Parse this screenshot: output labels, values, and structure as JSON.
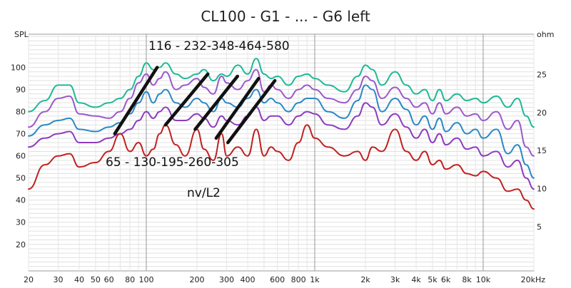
{
  "chart_data": {
    "type": "line",
    "title": "CL100 - G1 - ... - G6 left",
    "xscale": "log",
    "xlim": [
      20,
      20000
    ],
    "ylabel_left": "SPL",
    "ylabel_right": "ohm",
    "ylim": [
      8,
      115
    ],
    "x_ticks": [
      {
        "value": 20,
        "label": "20"
      },
      {
        "value": 30,
        "label": "30"
      },
      {
        "value": 40,
        "label": "40"
      },
      {
        "value": 50,
        "label": "50"
      },
      {
        "value": 60,
        "label": "60"
      },
      {
        "value": 80,
        "label": "80"
      },
      {
        "value": 100,
        "label": "100"
      },
      {
        "value": 200,
        "label": "200"
      },
      {
        "value": 300,
        "label": "300"
      },
      {
        "value": 400,
        "label": "400"
      },
      {
        "value": 600,
        "label": "600"
      },
      {
        "value": 800,
        "label": "800"
      },
      {
        "value": 1000,
        "label": "1k"
      },
      {
        "value": 2000,
        "label": "2k"
      },
      {
        "value": 3000,
        "label": "3k"
      },
      {
        "value": 4000,
        "label": "4k"
      },
      {
        "value": 5000,
        "label": "5k"
      },
      {
        "value": 6000,
        "label": "6k"
      },
      {
        "value": 8000,
        "label": "8k"
      },
      {
        "value": 10000,
        "label": "10k"
      },
      {
        "value": 20000,
        "label": "20kHz"
      }
    ],
    "y_ticks_left": [
      20,
      30,
      40,
      50,
      60,
      70,
      80,
      90,
      100
    ],
    "y_ticks_right": [
      {
        "value": 28,
        "label": "5"
      },
      {
        "value": 45.2,
        "label": "10"
      },
      {
        "value": 62.4,
        "label": "15"
      },
      {
        "value": 79.6,
        "label": "20"
      },
      {
        "value": 96.8,
        "label": "25"
      }
    ],
    "grid": true,
    "series": [
      {
        "color": "#1fb896",
        "x": [
          20,
          25,
          30,
          35,
          40,
          50,
          60,
          70,
          80,
          90,
          100,
          110,
          120,
          130,
          150,
          170,
          200,
          220,
          250,
          280,
          300,
          350,
          400,
          450,
          500,
          550,
          600,
          700,
          800,
          900,
          1000,
          1200,
          1500,
          1800,
          2000,
          2200,
          2500,
          3000,
          3500,
          4000,
          4500,
          5000,
          5500,
          6000,
          7000,
          8000,
          9000,
          10000,
          12000,
          14000,
          16000,
          18000,
          20000
        ],
        "y": [
          80,
          85,
          92,
          92,
          84,
          82,
          84,
          86,
          90,
          96,
          102,
          99,
          100,
          102,
          97,
          95,
          97,
          99,
          94,
          97,
          96,
          101,
          97,
          104,
          97,
          95,
          96,
          92,
          96,
          97,
          95,
          92,
          89,
          96,
          101,
          99,
          92,
          98,
          92,
          88,
          90,
          85,
          90,
          85,
          88,
          85,
          86,
          84,
          87,
          82,
          86,
          78,
          73
        ]
      },
      {
        "color": "#9b59c9",
        "x": [
          20,
          25,
          30,
          35,
          40,
          50,
          60,
          70,
          80,
          90,
          100,
          110,
          120,
          130,
          150,
          170,
          200,
          220,
          250,
          280,
          300,
          350,
          400,
          450,
          500,
          550,
          600,
          700,
          800,
          900,
          1000,
          1200,
          1500,
          1800,
          2000,
          2200,
          2500,
          3000,
          3500,
          4000,
          4500,
          5000,
          5500,
          6000,
          7000,
          8000,
          9000,
          10000,
          12000,
          14000,
          16000,
          18000,
          20000
        ],
        "y": [
          73,
          80,
          86,
          87,
          79,
          78,
          77,
          80,
          86,
          93,
          97,
          92,
          95,
          98,
          90,
          92,
          95,
          91,
          88,
          96,
          93,
          90,
          94,
          99,
          89,
          92,
          90,
          86,
          90,
          92,
          90,
          86,
          84,
          90,
          96,
          94,
          86,
          91,
          86,
          82,
          84,
          79,
          84,
          79,
          82,
          78,
          79,
          76,
          80,
          72,
          76,
          64,
          60
        ]
      },
      {
        "color": "#2b88c4",
        "x": [
          20,
          25,
          30,
          35,
          40,
          50,
          60,
          70,
          80,
          90,
          100,
          110,
          120,
          130,
          150,
          170,
          200,
          220,
          250,
          280,
          300,
          350,
          400,
          450,
          500,
          550,
          600,
          700,
          800,
          900,
          1000,
          1200,
          1500,
          1800,
          2000,
          2200,
          2500,
          3000,
          3500,
          4000,
          4500,
          5000,
          5500,
          6000,
          7000,
          8000,
          9000,
          10000,
          12000,
          14000,
          16000,
          18000,
          20000
        ],
        "y": [
          69,
          74,
          76,
          77,
          72,
          71,
          73,
          75,
          79,
          84,
          89,
          84,
          88,
          90,
          84,
          82,
          86,
          84,
          80,
          86,
          84,
          82,
          86,
          90,
          84,
          86,
          84,
          80,
          84,
          86,
          86,
          80,
          77,
          85,
          92,
          90,
          80,
          86,
          81,
          74,
          78,
          72,
          77,
          71,
          75,
          70,
          72,
          68,
          72,
          61,
          65,
          56,
          50
        ]
      },
      {
        "color": "#8c3bbd",
        "x": [
          20,
          25,
          30,
          35,
          40,
          50,
          60,
          70,
          80,
          90,
          100,
          110,
          120,
          130,
          150,
          170,
          200,
          220,
          250,
          280,
          300,
          350,
          400,
          450,
          500,
          550,
          600,
          700,
          800,
          900,
          1000,
          1200,
          1500,
          1800,
          2000,
          2200,
          2500,
          3000,
          3500,
          4000,
          4500,
          5000,
          5500,
          6000,
          7000,
          8000,
          9000,
          10000,
          12000,
          14000,
          16000,
          18000,
          20000
        ],
        "y": [
          64,
          68,
          70,
          71,
          66,
          66,
          68,
          70,
          72,
          76,
          80,
          77,
          80,
          82,
          76,
          76,
          79,
          77,
          73,
          78,
          76,
          74,
          78,
          82,
          76,
          78,
          78,
          74,
          78,
          80,
          79,
          74,
          72,
          78,
          84,
          82,
          74,
          79,
          73,
          68,
          72,
          66,
          70,
          65,
          68,
          63,
          64,
          60,
          62,
          55,
          58,
          50,
          45
        ]
      },
      {
        "color": "#c0211f",
        "x": [
          20,
          25,
          30,
          35,
          40,
          50,
          60,
          70,
          80,
          90,
          100,
          110,
          120,
          130,
          150,
          170,
          200,
          220,
          250,
          280,
          300,
          350,
          400,
          450,
          500,
          550,
          600,
          700,
          800,
          900,
          1000,
          1200,
          1500,
          1800,
          2000,
          2200,
          2500,
          3000,
          3500,
          4000,
          4500,
          5000,
          5500,
          6000,
          7000,
          8000,
          9000,
          10000,
          12000,
          14000,
          16000,
          18000,
          20000
        ],
        "y": [
          45,
          56,
          60,
          61,
          55,
          57,
          62,
          70,
          62,
          66,
          60,
          63,
          70,
          74,
          65,
          60,
          72,
          63,
          58,
          70,
          60,
          64,
          60,
          72,
          60,
          64,
          62,
          58,
          66,
          74,
          68,
          64,
          60,
          62,
          58,
          64,
          62,
          72,
          62,
          58,
          62,
          56,
          58,
          54,
          56,
          52,
          51,
          53,
          50,
          44,
          45,
          40,
          36
        ]
      }
    ],
    "harmonic_lines": [
      [
        65,
        70,
        116,
        100
      ],
      [
        130,
        74,
        232,
        97
      ],
      [
        195,
        72,
        348,
        96
      ],
      [
        260,
        68,
        464,
        95
      ],
      [
        305,
        66,
        580,
        94
      ]
    ],
    "annotations": {
      "top": "116 -   232-348-464-580",
      "bottom": "65 - 130-195-260-305",
      "note": "nv/L2"
    }
  }
}
